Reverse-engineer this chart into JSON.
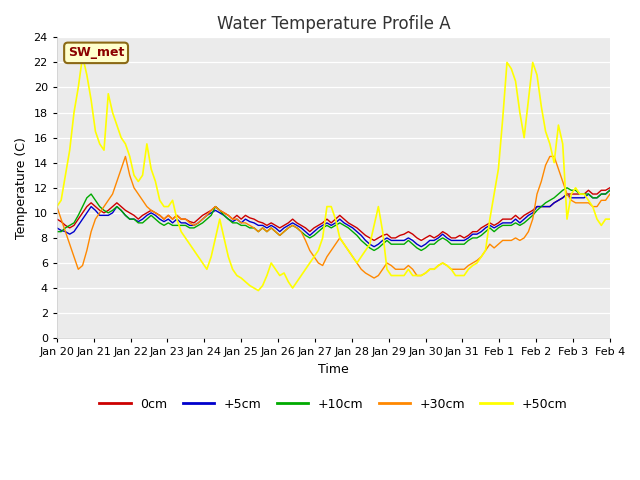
{
  "title": "Water Temperature Profile A",
  "xlabel": "Time",
  "ylabel": "Temperature (C)",
  "ylim": [
    0,
    24
  ],
  "bg_color": "#ebebeb",
  "fig_color": "#ffffff",
  "annotation": "SW_met",
  "annotation_color": "#8b0000",
  "annotation_bg": "#ffffcc",
  "annotation_border": "#8b6914",
  "xtick_labels": [
    "Jan 20",
    "Jan 21",
    "Jan 22",
    "Jan 23",
    "Jan 24",
    "Jan 25",
    "Jan 26",
    "Jan 27",
    "Jan 28",
    "Jan 29",
    "Jan 30",
    "Jan 31",
    "Feb 1",
    "Feb 2",
    "Feb 3",
    "Feb 4"
  ],
  "legend_labels": [
    "0cm",
    "+5cm",
    "+10cm",
    "+30cm",
    "+50cm"
  ],
  "line_colors": [
    "#cc0000",
    "#0000cc",
    "#00aa00",
    "#ff8800",
    "#ffff00"
  ],
  "line_widths": [
    1.0,
    1.0,
    1.0,
    1.0,
    1.2
  ],
  "series_0cm": [
    9.5,
    9.3,
    9.0,
    8.8,
    9.0,
    9.5,
    10.0,
    10.5,
    10.8,
    10.5,
    10.2,
    10.0,
    10.2,
    10.5,
    10.8,
    10.5,
    10.2,
    10.0,
    9.8,
    9.5,
    9.8,
    10.0,
    10.2,
    10.0,
    9.8,
    9.5,
    9.8,
    9.5,
    9.8,
    9.5,
    9.5,
    9.3,
    9.2,
    9.5,
    9.8,
    10.0,
    10.2,
    10.5,
    10.2,
    10.0,
    9.8,
    9.5,
    9.8,
    9.5,
    9.8,
    9.6,
    9.5,
    9.3,
    9.2,
    9.0,
    9.2,
    9.0,
    8.8,
    9.0,
    9.2,
    9.5,
    9.2,
    9.0,
    8.8,
    8.5,
    8.8,
    9.0,
    9.2,
    9.5,
    9.2,
    9.5,
    9.8,
    9.5,
    9.2,
    9.0,
    8.8,
    8.5,
    8.2,
    8.0,
    7.8,
    8.0,
    8.2,
    8.3,
    8.0,
    8.0,
    8.2,
    8.3,
    8.5,
    8.3,
    8.0,
    7.8,
    8.0,
    8.2,
    8.0,
    8.2,
    8.5,
    8.3,
    8.0,
    8.0,
    8.2,
    8.0,
    8.2,
    8.5,
    8.5,
    8.8,
    9.0,
    9.2,
    9.0,
    9.2,
    9.5,
    9.5,
    9.5,
    9.8,
    9.5,
    9.8,
    10.0,
    10.2,
    10.5,
    10.5,
    10.5,
    10.5,
    10.8,
    11.0,
    11.2,
    11.5,
    11.5,
    11.5,
    11.5,
    11.5,
    11.8,
    11.5,
    11.5,
    11.8,
    11.8,
    12.0
  ],
  "series_5cm": [
    8.8,
    8.6,
    8.5,
    8.3,
    8.5,
    9.0,
    9.5,
    10.0,
    10.5,
    10.2,
    9.8,
    9.8,
    9.8,
    10.0,
    10.5,
    10.2,
    9.8,
    9.5,
    9.5,
    9.3,
    9.5,
    9.8,
    10.0,
    9.8,
    9.5,
    9.3,
    9.5,
    9.2,
    9.5,
    9.2,
    9.2,
    9.0,
    9.0,
    9.2,
    9.5,
    9.8,
    10.0,
    10.2,
    10.0,
    9.8,
    9.5,
    9.3,
    9.5,
    9.2,
    9.5,
    9.3,
    9.2,
    9.0,
    9.0,
    8.8,
    9.0,
    8.8,
    8.5,
    8.8,
    9.0,
    9.2,
    9.0,
    8.8,
    8.5,
    8.2,
    8.5,
    8.8,
    9.0,
    9.2,
    9.0,
    9.2,
    9.5,
    9.2,
    9.0,
    8.8,
    8.5,
    8.2,
    7.8,
    7.5,
    7.3,
    7.5,
    7.8,
    8.0,
    7.8,
    7.8,
    7.8,
    7.8,
    8.0,
    7.8,
    7.5,
    7.3,
    7.5,
    7.8,
    7.8,
    8.0,
    8.3,
    8.0,
    7.8,
    7.8,
    7.8,
    7.8,
    8.0,
    8.3,
    8.3,
    8.5,
    8.8,
    9.0,
    8.8,
    9.0,
    9.2,
    9.2,
    9.2,
    9.5,
    9.2,
    9.5,
    9.8,
    10.0,
    10.5,
    10.5,
    10.5,
    10.5,
    10.8,
    11.0,
    11.2,
    11.5,
    11.2,
    11.2,
    11.2,
    11.2,
    11.5,
    11.2,
    11.2,
    11.5,
    11.5,
    11.8
  ],
  "series_10cm": [
    8.5,
    8.5,
    8.8,
    9.0,
    9.2,
    9.8,
    10.5,
    11.2,
    11.5,
    11.0,
    10.5,
    10.2,
    10.0,
    10.2,
    10.5,
    10.2,
    9.8,
    9.5,
    9.5,
    9.2,
    9.2,
    9.5,
    9.8,
    9.5,
    9.2,
    9.0,
    9.2,
    9.0,
    9.0,
    9.0,
    9.0,
    8.8,
    8.8,
    9.0,
    9.2,
    9.5,
    9.8,
    10.5,
    10.2,
    9.8,
    9.5,
    9.2,
    9.2,
    9.0,
    9.0,
    8.8,
    8.8,
    8.5,
    8.8,
    8.5,
    8.8,
    8.5,
    8.2,
    8.5,
    8.8,
    9.0,
    8.8,
    8.5,
    8.2,
    8.0,
    8.2,
    8.5,
    8.8,
    9.0,
    8.8,
    9.0,
    9.2,
    9.0,
    8.8,
    8.5,
    8.2,
    7.8,
    7.5,
    7.2,
    7.0,
    7.2,
    7.5,
    7.8,
    7.5,
    7.5,
    7.5,
    7.5,
    7.8,
    7.5,
    7.2,
    7.0,
    7.2,
    7.5,
    7.5,
    7.8,
    8.0,
    7.8,
    7.5,
    7.5,
    7.5,
    7.5,
    7.8,
    8.0,
    8.0,
    8.2,
    8.5,
    8.8,
    8.5,
    8.8,
    9.0,
    9.0,
    9.0,
    9.2,
    9.0,
    9.2,
    9.5,
    9.8,
    10.2,
    10.5,
    10.8,
    11.0,
    11.2,
    11.5,
    11.8,
    12.0,
    11.8,
    11.8,
    11.5,
    11.5,
    11.5,
    11.2,
    11.2,
    11.5,
    11.5,
    11.8
  ],
  "series_30cm": [
    10.5,
    9.5,
    8.5,
    7.5,
    6.5,
    5.5,
    5.8,
    7.0,
    8.5,
    9.5,
    10.0,
    10.5,
    11.0,
    11.5,
    12.5,
    13.5,
    14.5,
    13.0,
    12.0,
    11.5,
    11.0,
    10.5,
    10.2,
    10.0,
    9.8,
    9.5,
    9.8,
    9.5,
    9.8,
    9.5,
    9.5,
    9.2,
    9.0,
    9.2,
    9.5,
    9.8,
    10.2,
    10.5,
    10.2,
    10.0,
    9.8,
    9.5,
    9.5,
    9.2,
    9.2,
    9.0,
    8.8,
    8.5,
    8.8,
    8.5,
    8.8,
    8.5,
    8.2,
    8.5,
    8.8,
    9.0,
    8.8,
    8.5,
    7.8,
    7.0,
    6.5,
    6.0,
    5.8,
    6.5,
    7.0,
    7.5,
    8.0,
    7.5,
    7.0,
    6.5,
    6.0,
    5.5,
    5.2,
    5.0,
    4.8,
    5.0,
    5.5,
    6.0,
    5.8,
    5.5,
    5.5,
    5.5,
    5.8,
    5.5,
    5.0,
    5.0,
    5.2,
    5.5,
    5.5,
    5.8,
    6.0,
    5.8,
    5.5,
    5.5,
    5.5,
    5.5,
    5.8,
    6.0,
    6.2,
    6.5,
    7.0,
    7.5,
    7.2,
    7.5,
    7.8,
    7.8,
    7.8,
    8.0,
    7.8,
    8.0,
    8.5,
    9.5,
    11.5,
    12.5,
    13.8,
    14.5,
    14.5,
    13.5,
    12.5,
    11.5,
    11.0,
    10.8,
    10.8,
    10.8,
    10.8,
    10.5,
    10.5,
    11.0,
    11.0,
    11.5
  ],
  "series_50cm": [
    10.5,
    11.0,
    13.0,
    15.0,
    18.0,
    20.0,
    22.5,
    21.0,
    19.0,
    16.5,
    15.5,
    15.0,
    19.5,
    18.0,
    17.0,
    16.0,
    15.5,
    14.5,
    13.0,
    12.5,
    13.0,
    15.5,
    13.5,
    12.5,
    11.0,
    10.5,
    10.5,
    11.0,
    9.5,
    8.5,
    8.0,
    7.5,
    7.0,
    6.5,
    6.0,
    5.5,
    6.5,
    8.0,
    9.5,
    8.0,
    6.5,
    5.5,
    5.0,
    4.8,
    4.5,
    4.2,
    4.0,
    3.8,
    4.2,
    5.0,
    6.0,
    5.5,
    5.0,
    5.2,
    4.5,
    4.0,
    4.5,
    5.0,
    5.5,
    6.0,
    6.5,
    7.0,
    8.0,
    10.5,
    10.5,
    9.5,
    8.0,
    7.5,
    7.0,
    6.5,
    6.0,
    6.5,
    7.0,
    7.5,
    9.0,
    10.5,
    8.5,
    5.5,
    5.0,
    5.0,
    5.0,
    5.0,
    5.5,
    5.0,
    5.0,
    5.0,
    5.2,
    5.5,
    5.5,
    5.8,
    6.0,
    5.8,
    5.5,
    5.0,
    5.0,
    5.0,
    5.5,
    5.8,
    6.0,
    6.5,
    7.0,
    9.5,
    11.5,
    13.5,
    17.5,
    22.0,
    21.5,
    20.5,
    18.0,
    16.0,
    19.0,
    22.0,
    21.0,
    18.5,
    16.5,
    15.5,
    14.0,
    17.0,
    15.5,
    9.5,
    11.5,
    12.0,
    11.5,
    11.5,
    11.0,
    10.5,
    9.5,
    9.0,
    9.5,
    9.5
  ]
}
